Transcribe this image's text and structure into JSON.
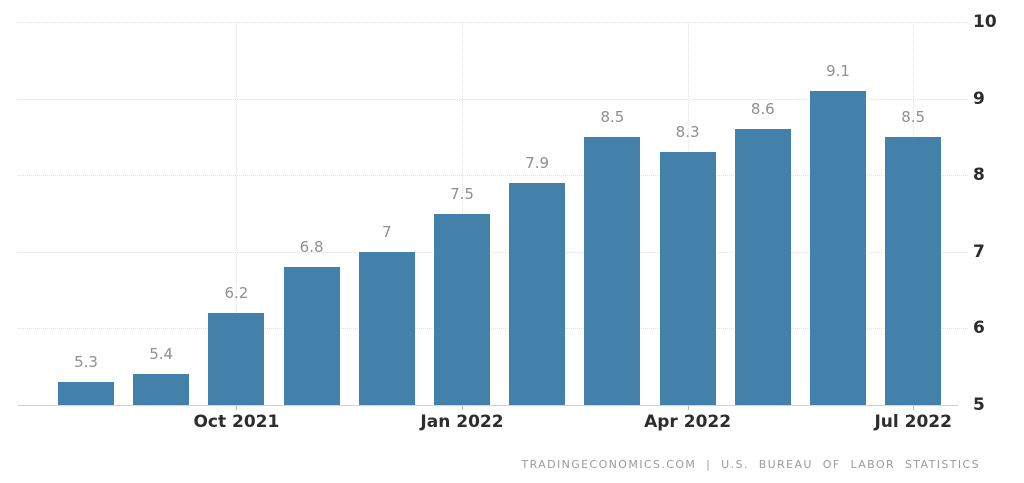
{
  "chart_data": {
    "type": "bar",
    "title": "",
    "values": [
      5.3,
      5.4,
      6.2,
      6.8,
      7.0,
      7.5,
      7.9,
      8.5,
      8.3,
      8.6,
      9.1,
      8.5
    ],
    "value_labels": [
      "5.3",
      "5.4",
      "6.2",
      "6.8",
      "7",
      "7.5",
      "7.9",
      "8.5",
      "8.3",
      "8.6",
      "9.1",
      "8.5"
    ],
    "x_ticks": [
      {
        "bar_index": 2,
        "label": "Oct 2021"
      },
      {
        "bar_index": 5,
        "label": "Jan 2022"
      },
      {
        "bar_index": 8,
        "label": "Apr 2022"
      },
      {
        "bar_index": 11,
        "label": "Jul 2022"
      }
    ],
    "y_ticks": [
      5,
      6,
      7,
      8,
      9,
      10
    ],
    "ylim": [
      5,
      10
    ],
    "grid": true,
    "legend": "none",
    "bar_color": "#4381ab",
    "value_label_color": "#8f8f8f",
    "axis_label_color": "#2d2d2d",
    "attribution": "TRADINGECONOMICS.COM | U.S. BUREAU OF LABOR STATISTICS"
  }
}
